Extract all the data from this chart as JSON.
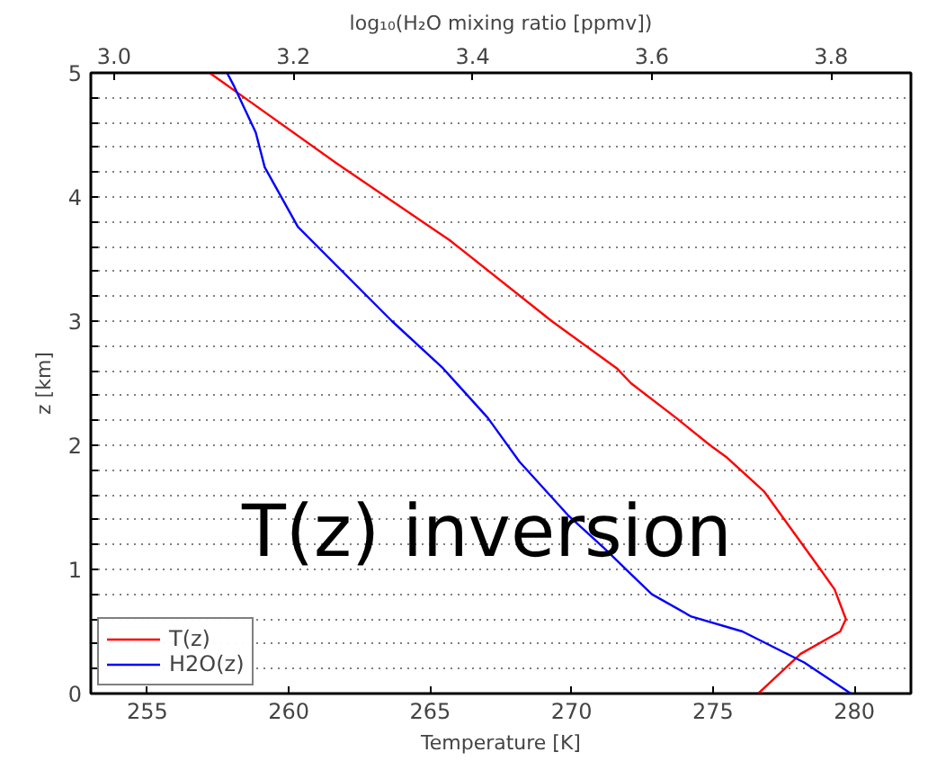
{
  "chart_data": {
    "type": "line",
    "xlabel": "Temperature [K]",
    "ylabel": "z [km]",
    "x2label": "log₁₀(H₂O mixing ratio [ppmv])",
    "xlim": [
      253,
      282
    ],
    "xticks": [
      255,
      260,
      265,
      270,
      275,
      280
    ],
    "x2lim": [
      2.974,
      3.889
    ],
    "x2ticks": [
      {
        "value": 3.0,
        "label": "3.0"
      },
      {
        "value": 3.2,
        "label": "3.2"
      },
      {
        "value": 3.4,
        "label": "3.4"
      },
      {
        "value": 3.6,
        "label": "3.6"
      },
      {
        "value": 3.8,
        "label": "3.8"
      }
    ],
    "ylim": [
      0,
      5
    ],
    "yticks": [
      0,
      {
        "value": 0.2,
        "label": null
      },
      {
        "value": 0.4,
        "label": null
      },
      {
        "value": 0.6,
        "label": null
      },
      {
        "value": 0.8,
        "label": null
      },
      1,
      {
        "value": 1.2,
        "label": null
      },
      {
        "value": 1.4,
        "label": null
      },
      {
        "value": 1.6,
        "label": null
      },
      {
        "value": 1.8,
        "label": null
      },
      2,
      {
        "value": 2.2,
        "label": null
      },
      {
        "value": 2.4,
        "label": null
      },
      {
        "value": 2.6,
        "label": null
      },
      {
        "value": 2.8,
        "label": null
      },
      3,
      {
        "value": 3.2,
        "label": null
      },
      {
        "value": 3.4,
        "label": null
      },
      {
        "value": 3.6,
        "label": null
      },
      {
        "value": 3.8,
        "label": null
      },
      4,
      {
        "value": 4.2,
        "label": null
      },
      {
        "value": 4.4,
        "label": null
      },
      {
        "value": 4.6,
        "label": null
      },
      {
        "value": 4.8,
        "label": null
      },
      5
    ],
    "grid": "y",
    "legend": "bottom left",
    "line_style": "solid",
    "annotations": [
      "T(z) inversion"
    ],
    "series": [
      {
        "name": "T(z)",
        "color": "#ff0000",
        "x": [
          276.6,
          278.1,
          279.5,
          279.7,
          279.3,
          278.8,
          276.8,
          275.5,
          274.9,
          273.7,
          272.1,
          271.6,
          269.3,
          265.7,
          261.7,
          257.2
        ],
        "values": [
          0,
          0.32,
          0.5,
          0.6,
          0.84,
          1.0,
          1.63,
          1.9,
          2.0,
          2.22,
          2.5,
          2.62,
          3.0,
          3.65,
          4.27,
          5.0
        ]
      },
      {
        "name": "H2O(z)",
        "color": "#0000ff",
        "axis": "x2",
        "x": [
          3.822,
          3.77,
          3.701,
          3.644,
          3.6,
          3.577,
          3.547,
          3.506,
          3.452,
          3.417,
          3.367,
          3.31,
          3.205,
          3.168,
          3.158,
          3.134,
          3.126
        ],
        "values": [
          0,
          0.25,
          0.5,
          0.62,
          0.8,
          0.96,
          1.17,
          1.44,
          1.87,
          2.22,
          2.62,
          3.0,
          3.76,
          4.24,
          4.52,
          4.89,
          5.0
        ]
      }
    ]
  }
}
